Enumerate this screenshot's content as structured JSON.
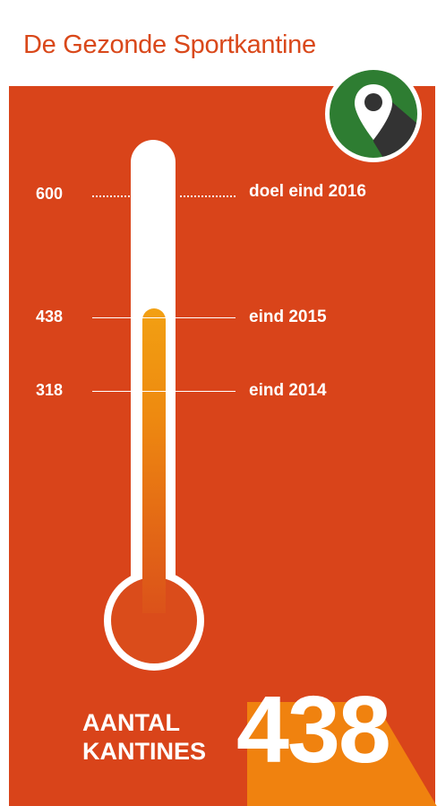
{
  "header": {
    "title": "De Gezonde Sportkantine"
  },
  "thermometer": {
    "max": 600,
    "current": 438,
    "markers": [
      {
        "value_label": "600",
        "description": "doel eind 2016",
        "style": "dotted"
      },
      {
        "value_label": "438",
        "description": "eind 2015",
        "style": "solid"
      },
      {
        "value_label": "318",
        "description": "eind 2014",
        "style": "solid"
      }
    ]
  },
  "counter": {
    "label_line1": "AANTAL",
    "label_line2": "KANTINES",
    "value": "438"
  },
  "map_badge": {
    "icon": "map-pin-icon"
  },
  "colors": {
    "brand": "#d9441a",
    "fill_top": "#f2a012",
    "accent_shadow": "#f0820f",
    "badge_green": "#2e7d32"
  }
}
